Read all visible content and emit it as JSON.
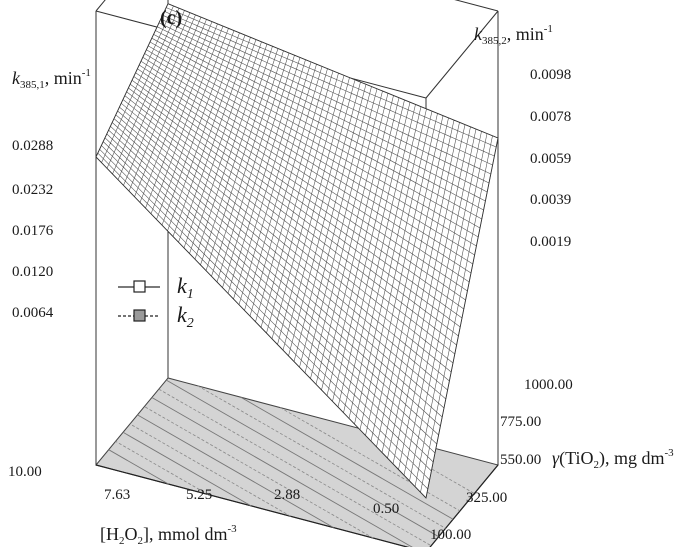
{
  "chart_data": {
    "type": "surface3d",
    "panel_label": "(c)",
    "z_left": {
      "label_main": "k",
      "label_sub": "385,1",
      "label_unit": ", min",
      "label_sup": "-1",
      "ticks": [
        "0.0288",
        "0.0232",
        "0.0176",
        "0.0120",
        "0.0064"
      ]
    },
    "z_right": {
      "label_main": "k",
      "label_sub": "385,2",
      "label_unit": ", min",
      "label_sup": "-1",
      "ticks": [
        "0.0098",
        "0.0078",
        "0.0059",
        "0.0039",
        "0.0019"
      ]
    },
    "x_axis": {
      "label_open": "[H",
      "label_sub1": "2",
      "label_mid": "O",
      "label_sub2": "2",
      "label_close": "], mmol dm",
      "label_sup": "-3",
      "ticks": [
        "10.00",
        "7.63",
        "5.25",
        "2.88",
        "0.50"
      ],
      "range": [
        10.0,
        0.5
      ]
    },
    "y_axis": {
      "label_greek": "γ",
      "label_open": "(TiO",
      "label_sub": "2",
      "label_close": "), mg dm",
      "label_sup": "-3",
      "ticks": [
        "100.00",
        "325.00",
        "550.00",
        "775.00",
        "1000.00"
      ],
      "range": [
        100.0,
        1000.0
      ]
    },
    "legend": {
      "position": "left-middle",
      "entries": [
        {
          "name_main": "k",
          "name_sub": "1",
          "line": "solid",
          "marker": "open-square"
        },
        {
          "name_main": "k",
          "name_sub": "2",
          "line": "dashed",
          "marker": "filled-square"
        }
      ]
    },
    "surface": {
      "series": "k1",
      "corners": [
        {
          "h2o2": 10.0,
          "tio2": 1000.0,
          "k": 0.0285
        },
        {
          "h2o2": 0.5,
          "tio2": 1000.0,
          "k": 0.025
        },
        {
          "h2o2": 10.0,
          "tio2": 100.0,
          "k": 0.0236
        },
        {
          "h2o2": 0.5,
          "tio2": 100.0,
          "k": 0.0048
        }
      ],
      "mesh_color": "#555555"
    },
    "floor_color": "#d4d4d4"
  }
}
